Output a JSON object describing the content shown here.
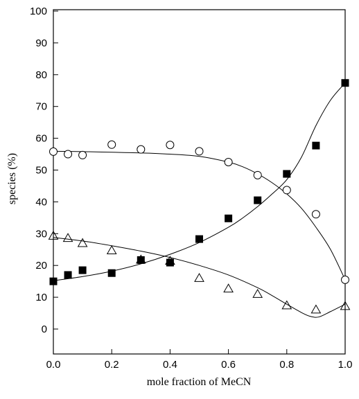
{
  "chart_data": {
    "type": "scatter",
    "xlabel": "mole fraction of MeCN",
    "ylabel": "species (%)",
    "xlim": [
      0.0,
      1.0
    ],
    "ylim": [
      0,
      100
    ],
    "xticks": [
      "0.0",
      "0.2",
      "0.4",
      "0.6",
      "0.8",
      "1.0"
    ],
    "xtick_values": [
      0.0,
      0.2,
      0.4,
      0.6,
      0.8,
      1.0
    ],
    "yticks": [
      "0",
      "10",
      "20",
      "30",
      "40",
      "50",
      "60",
      "70",
      "80",
      "90",
      "100"
    ],
    "ytick_values": [
      0,
      10,
      20,
      30,
      40,
      50,
      60,
      70,
      80,
      90,
      100
    ],
    "grid": false,
    "series": [
      {
        "marker": "open-circle",
        "x": [
          0.0,
          0.05,
          0.1,
          0.2,
          0.3,
          0.4,
          0.5,
          0.6,
          0.7,
          0.8,
          0.9,
          1.0
        ],
        "y": [
          55.8,
          55.0,
          54.7,
          58.0,
          56.5,
          57.9,
          55.9,
          52.5,
          48.4,
          43.7,
          36.1,
          15.5
        ],
        "curve_x": [
          0.0,
          0.1,
          0.2,
          0.3,
          0.4,
          0.5,
          0.6,
          0.65,
          0.7,
          0.75,
          0.8,
          0.85,
          0.9,
          0.95,
          1.0
        ],
        "curve_y": [
          55.9,
          55.8,
          55.6,
          55.4,
          55.0,
          54.3,
          52.5,
          51.0,
          48.8,
          46.0,
          42.5,
          38.0,
          32.0,
          25.0,
          15.5
        ]
      },
      {
        "marker": "filled-square",
        "x": [
          0.0,
          0.05,
          0.1,
          0.2,
          0.3,
          0.4,
          0.5,
          0.6,
          0.7,
          0.8,
          0.9,
          1.0
        ],
        "y": [
          15.0,
          17.0,
          18.5,
          17.6,
          21.7,
          20.9,
          28.3,
          34.8,
          40.5,
          48.8,
          57.7,
          77.4
        ],
        "curve_x": [
          0.0,
          0.1,
          0.2,
          0.3,
          0.4,
          0.5,
          0.6,
          0.65,
          0.7,
          0.75,
          0.8,
          0.85,
          0.9,
          0.95,
          1.0
        ],
        "curve_y": [
          15.2,
          16.5,
          18.2,
          20.5,
          23.5,
          27.2,
          32.0,
          35.0,
          38.5,
          42.5,
          47.0,
          54.0,
          64.0,
          72.0,
          77.4
        ]
      },
      {
        "marker": "open-triangle",
        "x": [
          0.0,
          0.05,
          0.1,
          0.2,
          0.3,
          0.4,
          0.5,
          0.6,
          0.7,
          0.8,
          0.9,
          1.0
        ],
        "y": [
          29.3,
          28.6,
          27.0,
          24.7,
          21.8,
          21.4,
          16.0,
          12.7,
          11.0,
          7.4,
          6.1,
          7.2
        ],
        "curve_x": [
          0.0,
          0.1,
          0.2,
          0.3,
          0.4,
          0.5,
          0.6,
          0.7,
          0.75,
          0.8,
          0.85,
          0.88,
          0.91,
          0.95,
          1.0
        ],
        "curve_y": [
          28.8,
          27.7,
          26.2,
          24.5,
          22.5,
          20.0,
          17.0,
          13.0,
          10.5,
          7.8,
          5.2,
          4.0,
          3.8,
          5.5,
          7.8
        ]
      }
    ]
  }
}
